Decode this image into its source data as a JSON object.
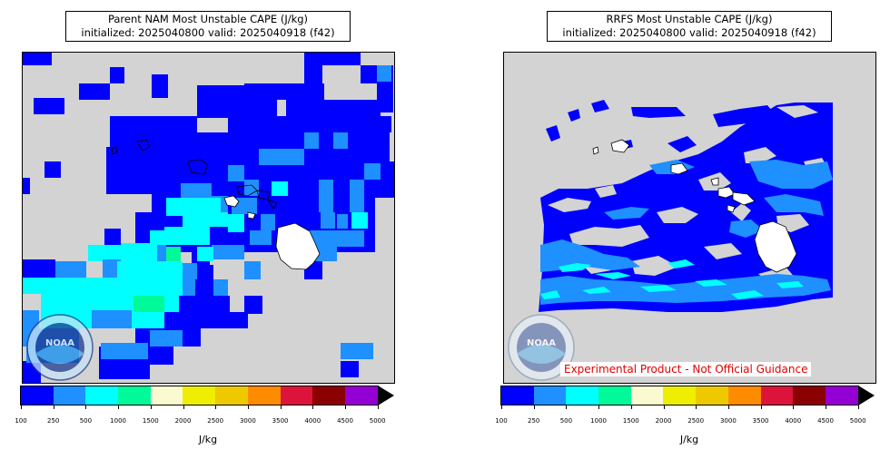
{
  "panels": [
    {
      "title_line1": "Parent NAM Most Unstable CAPE (J/kg)",
      "title_line2": "initialized: 2025040800 valid: 2025040918 (f42)",
      "unit": "J/kg",
      "logo_text": "NOAA"
    },
    {
      "title_line1": "RRFS Most Unstable CAPE (J/kg)",
      "title_line2": "initialized: 2025040800 valid: 2025040918 (f42)",
      "unit": "J/kg",
      "logo_text": "NOAA",
      "disclaimer": "Experimental Product - Not Official Guidance"
    }
  ],
  "colorbar": {
    "ticks": [
      "100",
      "250",
      "500",
      "1000",
      "1500",
      "2000",
      "2500",
      "3000",
      "3500",
      "4000",
      "4500",
      "5000"
    ],
    "colors": [
      "#0000ff",
      "#1e90ff",
      "#00ffff",
      "#00fa9a",
      "#fafad2",
      "#eeee00",
      "#eec900",
      "#ff8c00",
      "#dc143c",
      "#8b0000",
      "#9400d3"
    ],
    "extend": "max"
  },
  "map_colors": {
    "background": "#d3d3d3",
    "land": "#ffffff",
    "c100": "#0000ff",
    "c250": "#1e90ff",
    "c500": "#00ffff",
    "c1000": "#00fa9a"
  }
}
